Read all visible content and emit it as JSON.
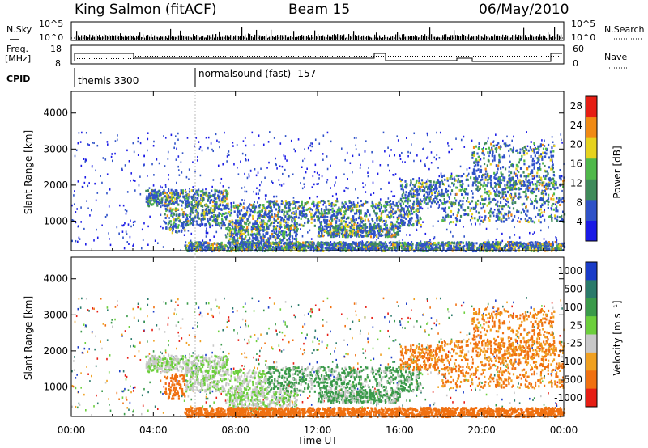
{
  "header": {
    "station": "King Salmon (fitACF)",
    "beam": "Beam 15",
    "date": "06/May/2010"
  },
  "top_panels": {
    "nsky_label": "N.Sky",
    "nsearch_label": "N.Search",
    "nsky_ticks": [
      "10^5",
      "10^0"
    ],
    "nsearch_ticks": [
      "10^5",
      "10^0"
    ],
    "freq_label_1": "Freq.",
    "freq_label_2": "[MHz]",
    "freq_ticks": [
      "18",
      "8"
    ],
    "nave_ticks": [
      "60",
      "0"
    ],
    "nave_label": "Nave",
    "cpid_label": "CPID",
    "cpid_1": "themis 3300",
    "cpid_2": "normalsound (fast) -157"
  },
  "chart_data": [
    {
      "type": "heatmap",
      "quantity": "power",
      "ylabel": "Slant Range [km]",
      "xlabel": "Time UT",
      "x_ticks": [
        "00:00",
        "04:00",
        "08:00",
        "12:00",
        "16:00",
        "20:00",
        "00:00"
      ],
      "y_ticks": [
        "1000",
        "2000",
        "3000",
        "4000"
      ],
      "xlim_hours": [
        0,
        24
      ],
      "ylim_km": [
        180,
        4600
      ],
      "colorbar": {
        "label": "Power [dB]",
        "ticks": [
          "4",
          "8",
          "12",
          "16",
          "20",
          "24",
          "28"
        ],
        "colors": [
          "#1a1ae6",
          "#2f52c8",
          "#3f8a5a",
          "#4fb84a",
          "#e6d21e",
          "#f08a14",
          "#e61e14"
        ]
      }
    },
    {
      "type": "heatmap",
      "quantity": "velocity",
      "ylabel": "Slant Range [km]",
      "xlabel": "Time UT",
      "x_ticks": [
        "00:00",
        "04:00",
        "08:00",
        "12:00",
        "16:00",
        "20:00",
        "00:00"
      ],
      "y_ticks": [
        "1000",
        "2000",
        "3000",
        "4000"
      ],
      "xlim_hours": [
        0,
        24
      ],
      "ylim_km": [
        180,
        4600
      ],
      "colorbar": {
        "label": "Velocity [m s⁻¹]",
        "ticks": [
          "1000",
          "500",
          "100",
          "25",
          "-25",
          "-100",
          "-500",
          "-1000"
        ],
        "colors": [
          "#1a3cc8",
          "#2a7a6a",
          "#3a9a4a",
          "#6ccf3c",
          "#c8c8c8",
          "#f0a020",
          "#f07010",
          "#e61e14"
        ]
      }
    }
  ]
}
